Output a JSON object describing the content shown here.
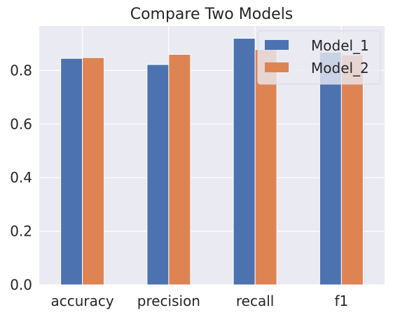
{
  "chart_data": {
    "type": "bar",
    "title": "Compare Two Models",
    "xlabel": "",
    "ylabel": "",
    "categories": [
      "accuracy",
      "precision",
      "recall",
      "f1"
    ],
    "series": [
      {
        "name": "Model_1",
        "values": [
          0.845,
          0.822,
          0.92,
          0.868
        ],
        "color": "#4c72b0"
      },
      {
        "name": "Model_2",
        "values": [
          0.848,
          0.86,
          0.878,
          0.858
        ],
        "color": "#dd8452"
      }
    ],
    "ylim": [
      0,
      0.966
    ],
    "yticks": [
      {
        "value": 0.0,
        "label": "0.0"
      },
      {
        "value": 0.2,
        "label": "0.2"
      },
      {
        "value": 0.4,
        "label": "0.4"
      },
      {
        "value": 0.6,
        "label": "0.6"
      },
      {
        "value": 0.8,
        "label": "0.8"
      }
    ],
    "grid": true,
    "legend_position": "top-right",
    "background_color": "#eaeaf2",
    "grid_color": "#ffffff"
  }
}
